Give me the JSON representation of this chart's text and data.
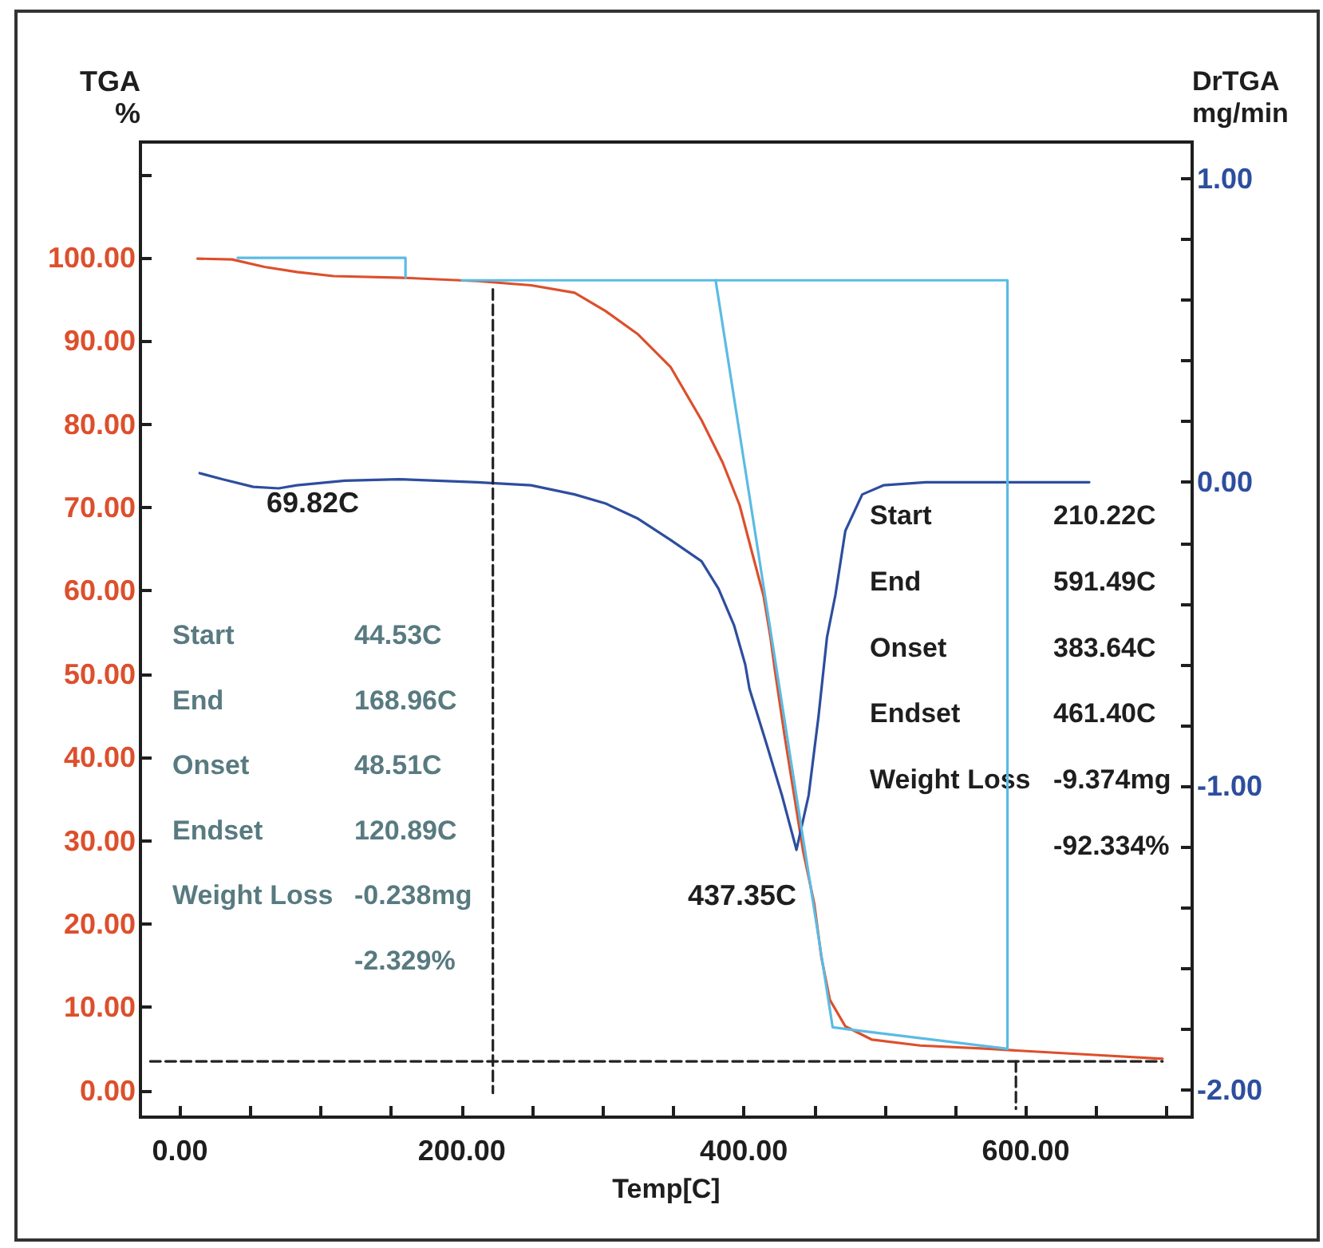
{
  "chart_data": {
    "type": "line",
    "xlabel": "Temp[C]",
    "ylabel": "TGA\n%",
    "y2label": "DrTGA\nmg/min",
    "xlim": [
      -28,
      718
    ],
    "xticks": [
      {
        "value": 0,
        "label": "0.00"
      },
      {
        "value": 50,
        "label": null
      },
      {
        "value": 100,
        "label": null
      },
      {
        "value": 150,
        "label": null
      },
      {
        "value": 200,
        "label": "200.00"
      },
      {
        "value": 250,
        "label": null
      },
      {
        "value": 300,
        "label": null
      },
      {
        "value": 350,
        "label": null
      },
      {
        "value": 400,
        "label": "400.00"
      },
      {
        "value": 450,
        "label": null
      },
      {
        "value": 500,
        "label": null
      },
      {
        "value": 550,
        "label": null
      },
      {
        "value": 600,
        "label": "600.00"
      },
      {
        "value": 650,
        "label": null
      },
      {
        "value": 700,
        "label": null
      }
    ],
    "ylim": [
      -3.2,
      113.9
    ],
    "yticks": [
      {
        "value": 0,
        "label": "0.00"
      },
      {
        "value": 10,
        "label": "10.00"
      },
      {
        "value": 20,
        "label": "20.00"
      },
      {
        "value": 30,
        "label": "30.00"
      },
      {
        "value": 40,
        "label": "40.00"
      },
      {
        "value": 50,
        "label": "50.00"
      },
      {
        "value": 60,
        "label": "60.00"
      },
      {
        "value": 70,
        "label": "70.00"
      },
      {
        "value": 80,
        "label": "80.00"
      },
      {
        "value": 90,
        "label": "90.00"
      },
      {
        "value": 100,
        "label": "100.00"
      },
      {
        "value": 110,
        "label": null
      }
    ],
    "y2lim": [
      -2.09,
      1.12
    ],
    "y2ticks": [
      {
        "value": -2,
        "label": "-2.00"
      },
      {
        "value": -1.8,
        "label": null
      },
      {
        "value": -1.6,
        "label": null
      },
      {
        "value": -1.4,
        "label": null
      },
      {
        "value": -1.2,
        "label": null
      },
      {
        "value": -1,
        "label": "-1.00"
      },
      {
        "value": -0.8,
        "label": null
      },
      {
        "value": -0.6,
        "label": null
      },
      {
        "value": -0.4,
        "label": null
      },
      {
        "value": -0.2,
        "label": null
      },
      {
        "value": 0,
        "label": "0.00"
      },
      {
        "value": 0.2,
        "label": null
      },
      {
        "value": 0.4,
        "label": null
      },
      {
        "value": 0.6,
        "label": null
      },
      {
        "value": 0.8,
        "label": null
      },
      {
        "value": 1,
        "label": "1.00"
      }
    ],
    "series": [
      {
        "color": "#dd4f2c",
        "x": [
          12.5,
          37,
          60,
          83,
          109,
          158,
          211,
          249,
          280,
          302,
          325,
          348,
          370,
          385,
          397,
          406,
          414,
          419,
          422,
          429,
          436,
          442,
          450,
          455,
          461,
          472,
          491,
          525,
          574,
          593,
          646,
          697
        ],
        "values": [
          99.9,
          99.8,
          98.9,
          98.3,
          97.8,
          97.6,
          97.2,
          96.7,
          95.8,
          93.6,
          90.8,
          86.9,
          80.5,
          75.4,
          70.3,
          64.5,
          59.4,
          54.3,
          50.5,
          42.5,
          35.1,
          28.8,
          22.4,
          16.0,
          10.9,
          7.7,
          6.1,
          5.4,
          5.0,
          4.8,
          4.3,
          3.8
        ]
      },
      {
        "color": "#2d4e9e",
        "axis": "y2",
        "x": [
          14,
          30,
          52,
          70,
          83,
          117,
          155,
          211,
          249,
          280,
          302,
          325,
          348,
          370,
          382,
          393,
          401,
          404,
          416,
          427,
          437.35,
          446,
          453,
          459,
          465,
          472,
          484,
          499,
          529,
          590,
          645
        ],
        "values": [
          0.03,
          0.01,
          -0.015,
          -0.02,
          -0.01,
          0.005,
          0.01,
          0,
          -0.01,
          -0.04,
          -0.07,
          -0.12,
          -0.19,
          -0.26,
          -0.35,
          -0.47,
          -0.6,
          -0.68,
          -0.86,
          -1.03,
          -1.21,
          -1.03,
          -0.77,
          -0.51,
          -0.37,
          -0.16,
          -0.04,
          -0.01,
          0,
          0,
          0
        ]
      },
      {
        "color": "#5bbbe3",
        "x": [
          41,
          160,
          160
        ],
        "values": [
          100,
          100,
          97.6
        ]
      },
      {
        "color": "#5bbbe3",
        "x": [
          200,
          587,
          587
        ],
        "values": [
          97.3,
          97.3,
          5.0
        ]
      },
      {
        "color": "#5bbbe3",
        "x": [
          380,
          463,
          476,
          587
        ],
        "values": [
          97.3,
          7.6,
          7.3,
          5.0
        ]
      },
      {
        "color": "#222222",
        "line_style": "dashed",
        "x": [
          222,
          222
        ],
        "values": [
          96.2,
          -0.3
        ]
      },
      {
        "color": "#222222",
        "line_style": "dashed",
        "x": [
          593,
          593
        ],
        "values": [
          3.5,
          -2.2
        ]
      },
      {
        "color": "#222222",
        "line_style": "dashed",
        "x": [
          -21,
          697
        ],
        "values": [
          3.5,
          3.5
        ]
      }
    ],
    "annotations": [
      "69.82C",
      "437.35C",
      "Start",
      "44.53C",
      "End",
      "168.96C",
      "Onset",
      "48.51C",
      "Endset",
      "120.89C",
      "Weight Loss",
      "-0.238mg",
      "-2.329%",
      "Start",
      "210.22C",
      "End",
      "591.49C",
      "Onset",
      "383.64C",
      "Endset",
      "461.40C",
      "Weight Loss",
      "-9.374mg",
      "-92.334%"
    ]
  }
}
